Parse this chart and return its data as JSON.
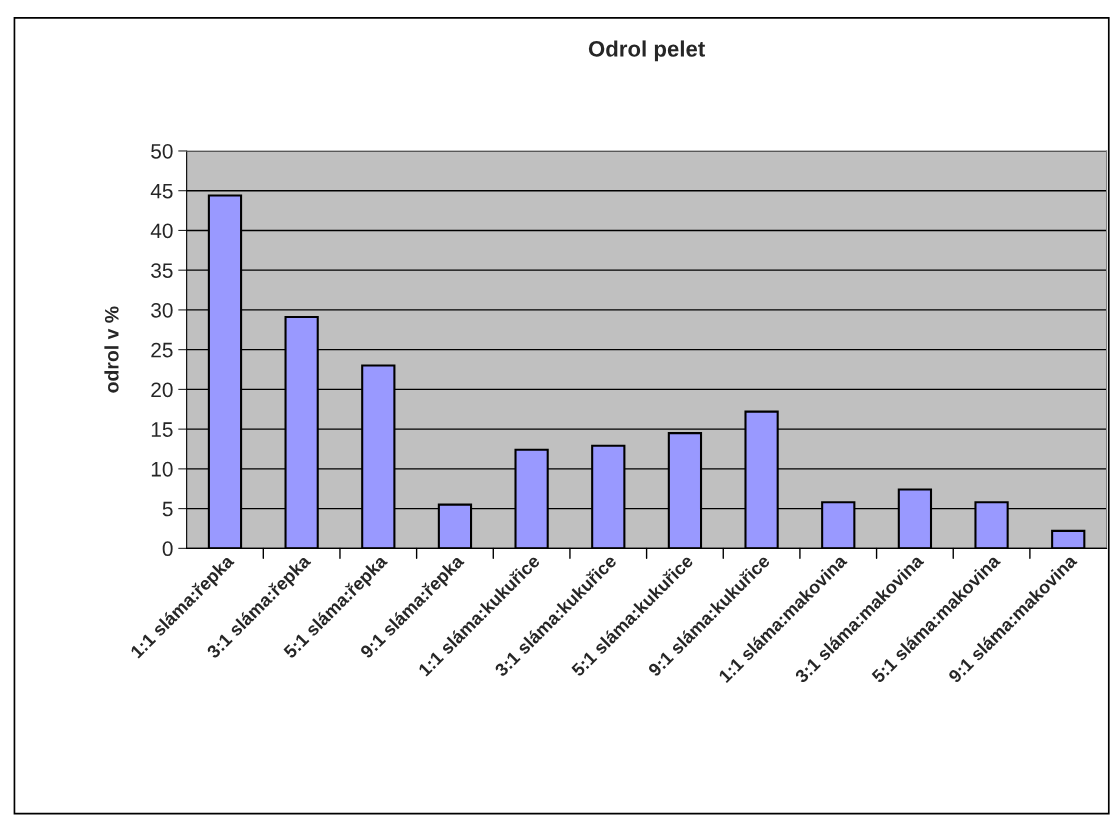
{
  "chart_data": {
    "type": "bar",
    "title": "Odrol pelet",
    "ylabel": "odrol v %",
    "categories": [
      "1:1 sláma:řepka",
      "3:1 sláma:řepka",
      "5:1 sláma:řepka",
      "9:1 sláma:řepka",
      "1:1 sláma:kukuřice",
      "3:1 sláma:kukuřice",
      "5:1 sláma:kukuřice",
      "9:1 sláma:kukuřice",
      "1:1 sláma:makovina",
      "3:1 sláma:makovina",
      "5:1 sláma:makovina",
      "9:1 sláma:makovina"
    ],
    "values": [
      44.4,
      29.1,
      23.0,
      5.5,
      12.4,
      12.9,
      14.5,
      17.2,
      5.8,
      7.4,
      5.8,
      2.2
    ],
    "color": "#9999ff",
    "ylim": [
      0,
      50
    ],
    "yticks": [
      0,
      5,
      10,
      15,
      20,
      25,
      30,
      35,
      40,
      45,
      50
    ],
    "grid": "y",
    "legend": false
  }
}
